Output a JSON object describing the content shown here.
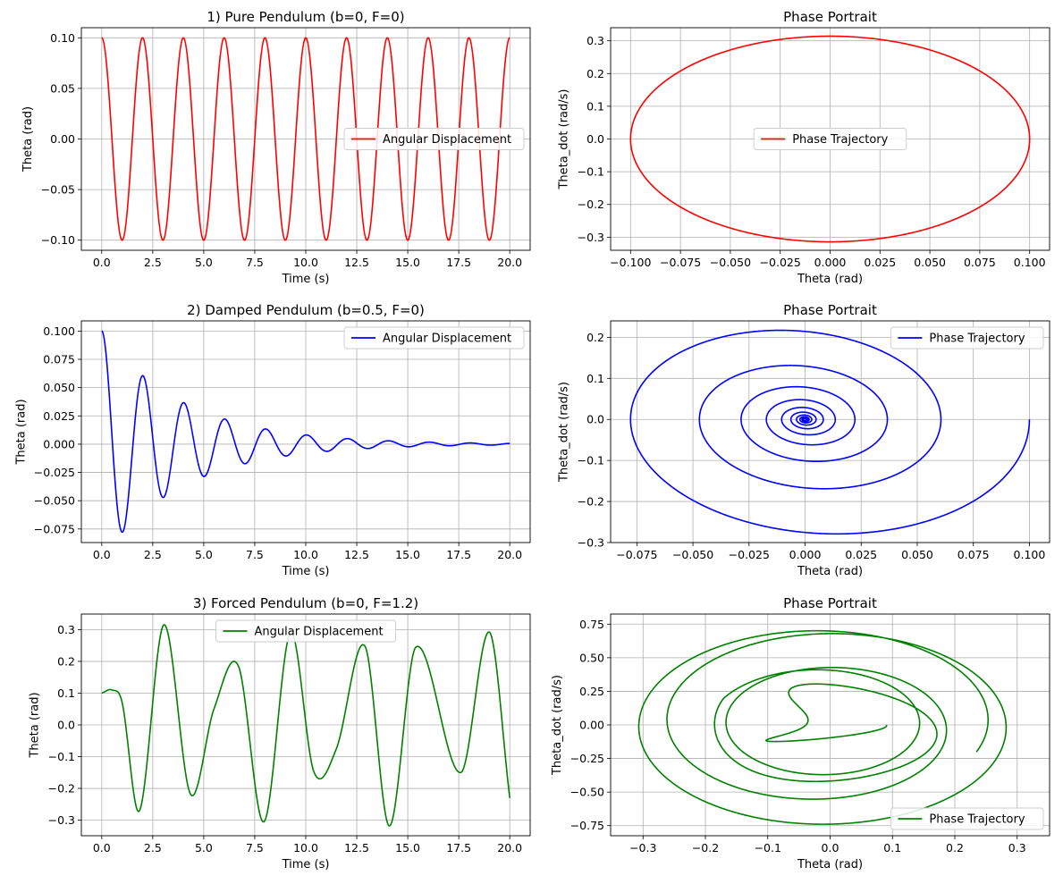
{
  "chart_data": [
    {
      "type": "line",
      "kind": "time",
      "title": "1) Pure Pendulum (b=0, F=0)",
      "xlabel": "Time (s)",
      "ylabel": "Theta (rad)",
      "xlim": [
        -1,
        21
      ],
      "ylim": [
        -0.11,
        0.11
      ],
      "xticks": [
        0,
        2.5,
        5,
        7.5,
        10,
        12.5,
        15,
        17.5,
        20
      ],
      "xtick_labels": [
        "0.0",
        "2.5",
        "5.0",
        "7.5",
        "10.0",
        "12.5",
        "15.0",
        "17.5",
        "20.0"
      ],
      "yticks": [
        -0.1,
        -0.05,
        0,
        0.05,
        0.1
      ],
      "ytick_labels": [
        "−0.10",
        "−0.05",
        "0.00",
        "0.05",
        "0.10"
      ],
      "grid": true,
      "legend_position": "center-right",
      "color": "#ff0000",
      "series": [
        {
          "name": "Angular Displacement",
          "theta0": 0.1,
          "damping": 0,
          "forcing": 0,
          "period": 2.0,
          "t_range": [
            0,
            20
          ]
        }
      ]
    },
    {
      "type": "line",
      "kind": "phase",
      "title": "Phase Portrait",
      "xlabel": "Theta (rad)",
      "ylabel": "Theta_dot (rad/s)",
      "xlim": [
        -0.11,
        0.11
      ],
      "ylim": [
        -0.34,
        0.34
      ],
      "xticks": [
        -0.1,
        -0.075,
        -0.05,
        -0.025,
        0,
        0.025,
        0.05,
        0.075,
        0.1
      ],
      "xtick_labels": [
        "−0.100",
        "−0.075",
        "−0.050",
        "−0.025",
        "0.000",
        "0.025",
        "0.050",
        "0.075",
        "0.100"
      ],
      "yticks": [
        -0.3,
        -0.2,
        -0.1,
        0,
        0.1,
        0.2,
        0.3
      ],
      "ytick_labels": [
        "−0.3",
        "−0.2",
        "−0.1",
        "0.0",
        "0.1",
        "0.2",
        "0.3"
      ],
      "grid": true,
      "legend_position": "center",
      "color": "#ff0000",
      "series": [
        {
          "name": "Phase Trajectory",
          "theta_amplitude": 0.1,
          "theta_dot_amplitude": 0.314
        }
      ]
    },
    {
      "type": "line",
      "kind": "time",
      "title": "2) Damped Pendulum (b=0.5, F=0)",
      "xlabel": "Time (s)",
      "ylabel": "Theta (rad)",
      "xlim": [
        -1,
        21
      ],
      "ylim": [
        -0.087,
        0.109
      ],
      "xticks": [
        0,
        2.5,
        5,
        7.5,
        10,
        12.5,
        15,
        17.5,
        20
      ],
      "xtick_labels": [
        "0.0",
        "2.5",
        "5.0",
        "7.5",
        "10.0",
        "12.5",
        "15.0",
        "17.5",
        "20.0"
      ],
      "yticks": [
        -0.075,
        -0.05,
        -0.025,
        0,
        0.025,
        0.05,
        0.075,
        0.1
      ],
      "ytick_labels": [
        "−0.075",
        "−0.050",
        "−0.025",
        "0.000",
        "0.025",
        "0.050",
        "0.075",
        "0.100"
      ],
      "grid": true,
      "legend_position": "top-right",
      "color": "#0000ff",
      "series": [
        {
          "name": "Angular Displacement",
          "theta0": 0.1,
          "damping": 0.5,
          "forcing": 0,
          "period": 2.0,
          "t_range": [
            0,
            20
          ]
        }
      ]
    },
    {
      "type": "line",
      "kind": "phase",
      "title": "Phase Portrait",
      "xlabel": "Theta (rad)",
      "ylabel": "Theta_dot (rad/s)",
      "xlim": [
        -0.0867,
        0.109
      ],
      "ylim": [
        -0.3,
        0.24
      ],
      "xticks": [
        -0.075,
        -0.05,
        -0.025,
        0,
        0.025,
        0.05,
        0.075,
        0.1
      ],
      "xtick_labels": [
        "−0.075",
        "−0.050",
        "−0.025",
        "0.000",
        "0.025",
        "0.050",
        "0.075",
        "0.100"
      ],
      "yticks": [
        -0.3,
        -0.2,
        -0.1,
        0,
        0.1,
        0.2
      ],
      "ytick_labels": [
        "−0.3",
        "−0.2",
        "−0.1",
        "0.0",
        "0.1",
        "0.2"
      ],
      "grid": true,
      "legend_position": "top-right",
      "color": "#0000ff",
      "series": [
        {
          "name": "Phase Trajectory",
          "theta0": 0.1,
          "damping": 0.5
        }
      ]
    },
    {
      "type": "line",
      "kind": "time",
      "title": "3) Forced Pendulum (b=0, F=1.2)",
      "xlabel": "Time (s)",
      "ylabel": "Theta (rad)",
      "xlim": [
        -1,
        21
      ],
      "ylim": [
        -0.349,
        0.349
      ],
      "xticks": [
        0,
        2.5,
        5,
        7.5,
        10,
        12.5,
        15,
        17.5,
        20
      ],
      "xtick_labels": [
        "0.0",
        "2.5",
        "5.0",
        "7.5",
        "10.0",
        "12.5",
        "15.0",
        "17.5",
        "20.0"
      ],
      "yticks": [
        -0.3,
        -0.2,
        -0.1,
        0,
        0.1,
        0.2,
        0.3
      ],
      "ytick_labels": [
        "−0.3",
        "−0.2",
        "−0.1",
        "0.0",
        "0.1",
        "0.2",
        "0.3"
      ],
      "grid": true,
      "legend_position": "top-center",
      "color": "#008000",
      "series": [
        {
          "name": "Angular Displacement",
          "theta0": 0.1,
          "damping": 0,
          "forcing": 1.2,
          "t_range": [
            0,
            20
          ],
          "key_points": [
            [
              0,
              0.1
            ],
            [
              0.5,
              0.11
            ],
            [
              1.0,
              0.07
            ],
            [
              1.85,
              -0.27
            ],
            [
              3.05,
              0.315
            ],
            [
              4.35,
              -0.218
            ],
            [
              5.5,
              0.05
            ],
            [
              6.7,
              0.185
            ],
            [
              7.95,
              -0.305
            ],
            [
              9.25,
              0.29
            ],
            [
              10.4,
              -0.148
            ],
            [
              11.5,
              -0.075
            ],
            [
              12.9,
              0.248
            ],
            [
              14.1,
              -0.318
            ],
            [
              15.4,
              0.245
            ],
            [
              17.6,
              -0.15
            ],
            [
              19.0,
              0.292
            ],
            [
              20,
              -0.23
            ]
          ]
        }
      ]
    },
    {
      "type": "line",
      "kind": "phase",
      "title": "Phase Portrait",
      "xlabel": "Theta (rad)",
      "ylabel": "Theta_dot (rad/s)",
      "xlim": [
        -0.352,
        0.352
      ],
      "ylim": [
        -0.825,
        0.825
      ],
      "xticks": [
        -0.3,
        -0.2,
        -0.1,
        0,
        0.1,
        0.2,
        0.3
      ],
      "xtick_labels": [
        "−0.3",
        "−0.2",
        "−0.1",
        "0.0",
        "0.1",
        "0.2",
        "0.3"
      ],
      "yticks": [
        -0.75,
        -0.5,
        -0.25,
        0,
        0.25,
        0.5,
        0.75
      ],
      "ytick_labels": [
        "−0.75",
        "−0.50",
        "−0.25",
        "0.00",
        "0.25",
        "0.50",
        "0.75"
      ],
      "grid": true,
      "legend_position": "bottom-right",
      "color": "#008000",
      "series": [
        {
          "name": "Phase Trajectory",
          "theta0": 0.1,
          "forcing": 1.2
        }
      ]
    }
  ]
}
